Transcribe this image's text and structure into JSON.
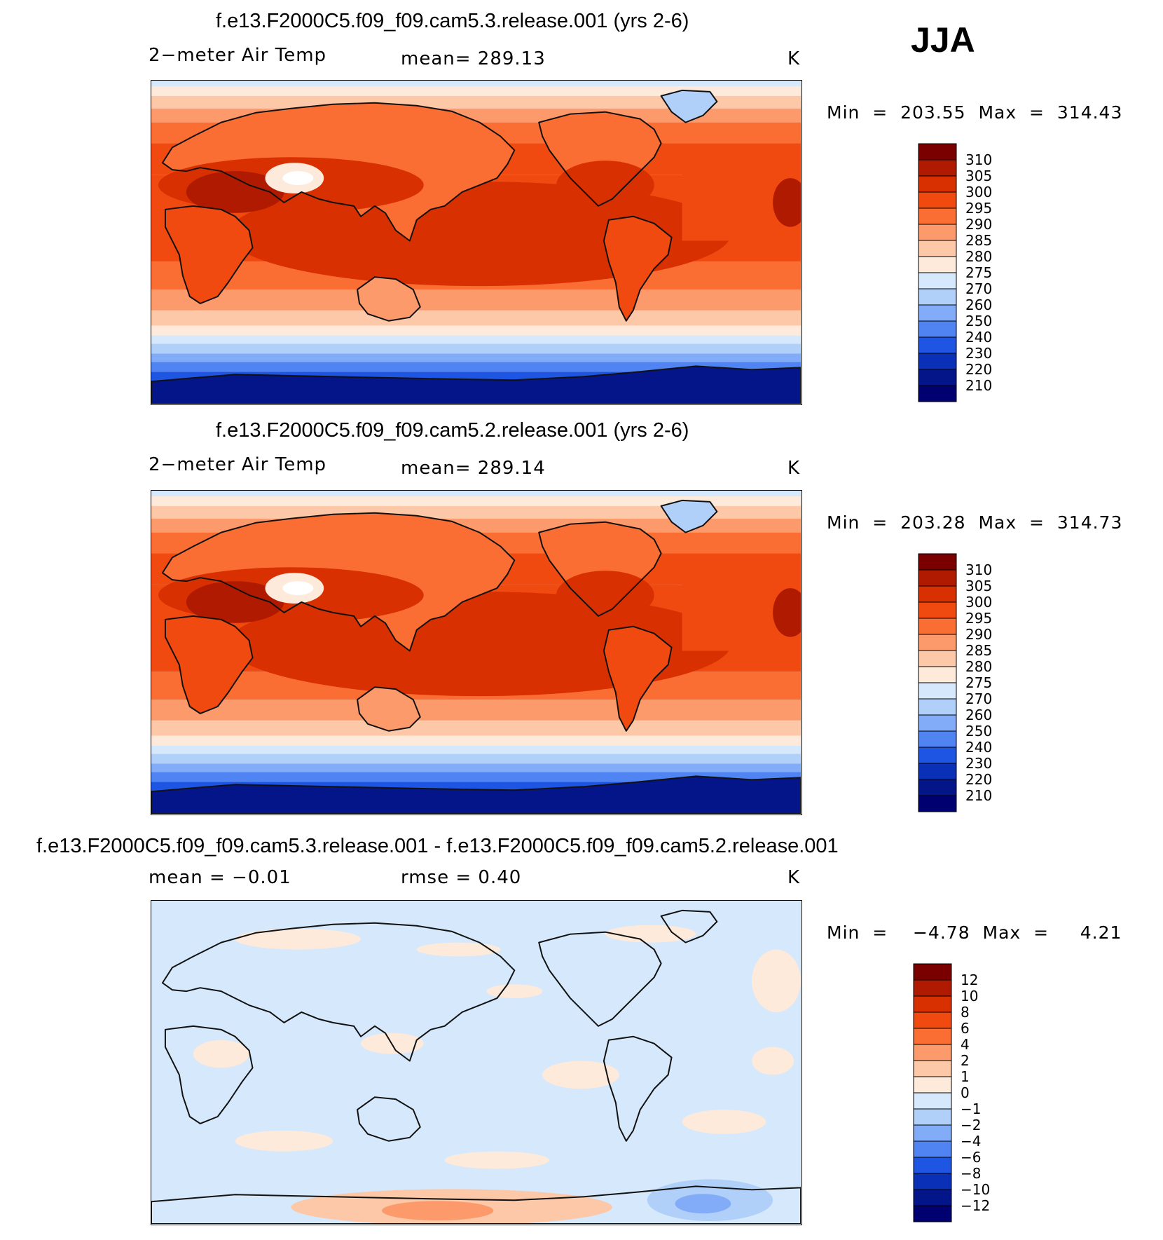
{
  "season": "JJA",
  "panels": [
    {
      "title": "f.e13.F2000C5.f09_f09.cam5.3.release.001 (yrs 2-6)",
      "left_label": "2−meter Air Temp",
      "center_label": "mean=  289.13",
      "units": "K",
      "min_max": "Min  =  203.55  Max  =  314.43",
      "colorbar": {
        "levels": [
          "310",
          "305",
          "300",
          "295",
          "290",
          "285",
          "280",
          "275",
          "270",
          "260",
          "250",
          "240",
          "230",
          "220",
          "210"
        ],
        "colors": [
          "#7a0000",
          "#b01a00",
          "#d83000",
          "#f04a10",
          "#fa6e34",
          "#fc9a6c",
          "#fdc8a8",
          "#fdeadb",
          "#d6e8fb",
          "#b0cff9",
          "#82acf7",
          "#4f84f2",
          "#1e55e2",
          "#0a30b8",
          "#04158a",
          "#000070"
        ]
      },
      "field": "absolute",
      "max_warm_level": "305"
    },
    {
      "title": "f.e13.F2000C5.f09_f09.cam5.2.release.001 (yrs 2-6)",
      "left_label": "2−meter Air Temp",
      "center_label": "mean=  289.14",
      "units": "K",
      "min_max": "Min  =  203.28  Max  =  314.73",
      "colorbar": {
        "levels": [
          "310",
          "305",
          "300",
          "295",
          "290",
          "285",
          "280",
          "275",
          "270",
          "260",
          "250",
          "240",
          "230",
          "220",
          "210"
        ],
        "colors": [
          "#7a0000",
          "#b01a00",
          "#d83000",
          "#f04a10",
          "#fa6e34",
          "#fc9a6c",
          "#fdc8a8",
          "#fdeadb",
          "#d6e8fb",
          "#b0cff9",
          "#82acf7",
          "#4f84f2",
          "#1e55e2",
          "#0a30b8",
          "#04158a",
          "#000070"
        ]
      },
      "field": "absolute",
      "max_warm_level": "305"
    },
    {
      "title": "f.e13.F2000C5.f09_f09.cam5.3.release.001 - f.e13.F2000C5.f09_f09.cam5.2.release.001",
      "left_label": "mean =    −0.01",
      "center_label": "rmse =     0.40",
      "units": "K",
      "min_max": "Min  =    −4.78  Max  =     4.21",
      "colorbar": {
        "levels": [
          "12",
          "10",
          "8",
          "6",
          "4",
          "2",
          "1",
          "0",
          "−1",
          "−2",
          "−4",
          "−6",
          "−8",
          "−10",
          "−12"
        ],
        "colors": [
          "#7a0000",
          "#b01a00",
          "#d83000",
          "#f04a10",
          "#fa6e34",
          "#fc9a6c",
          "#fdc8a8",
          "#fdeadb",
          "#d6e8fb",
          "#b0cff9",
          "#82acf7",
          "#4f84f2",
          "#1e55e2",
          "#0a30b8",
          "#04158a",
          "#000070"
        ]
      },
      "field": "difference"
    }
  ]
}
